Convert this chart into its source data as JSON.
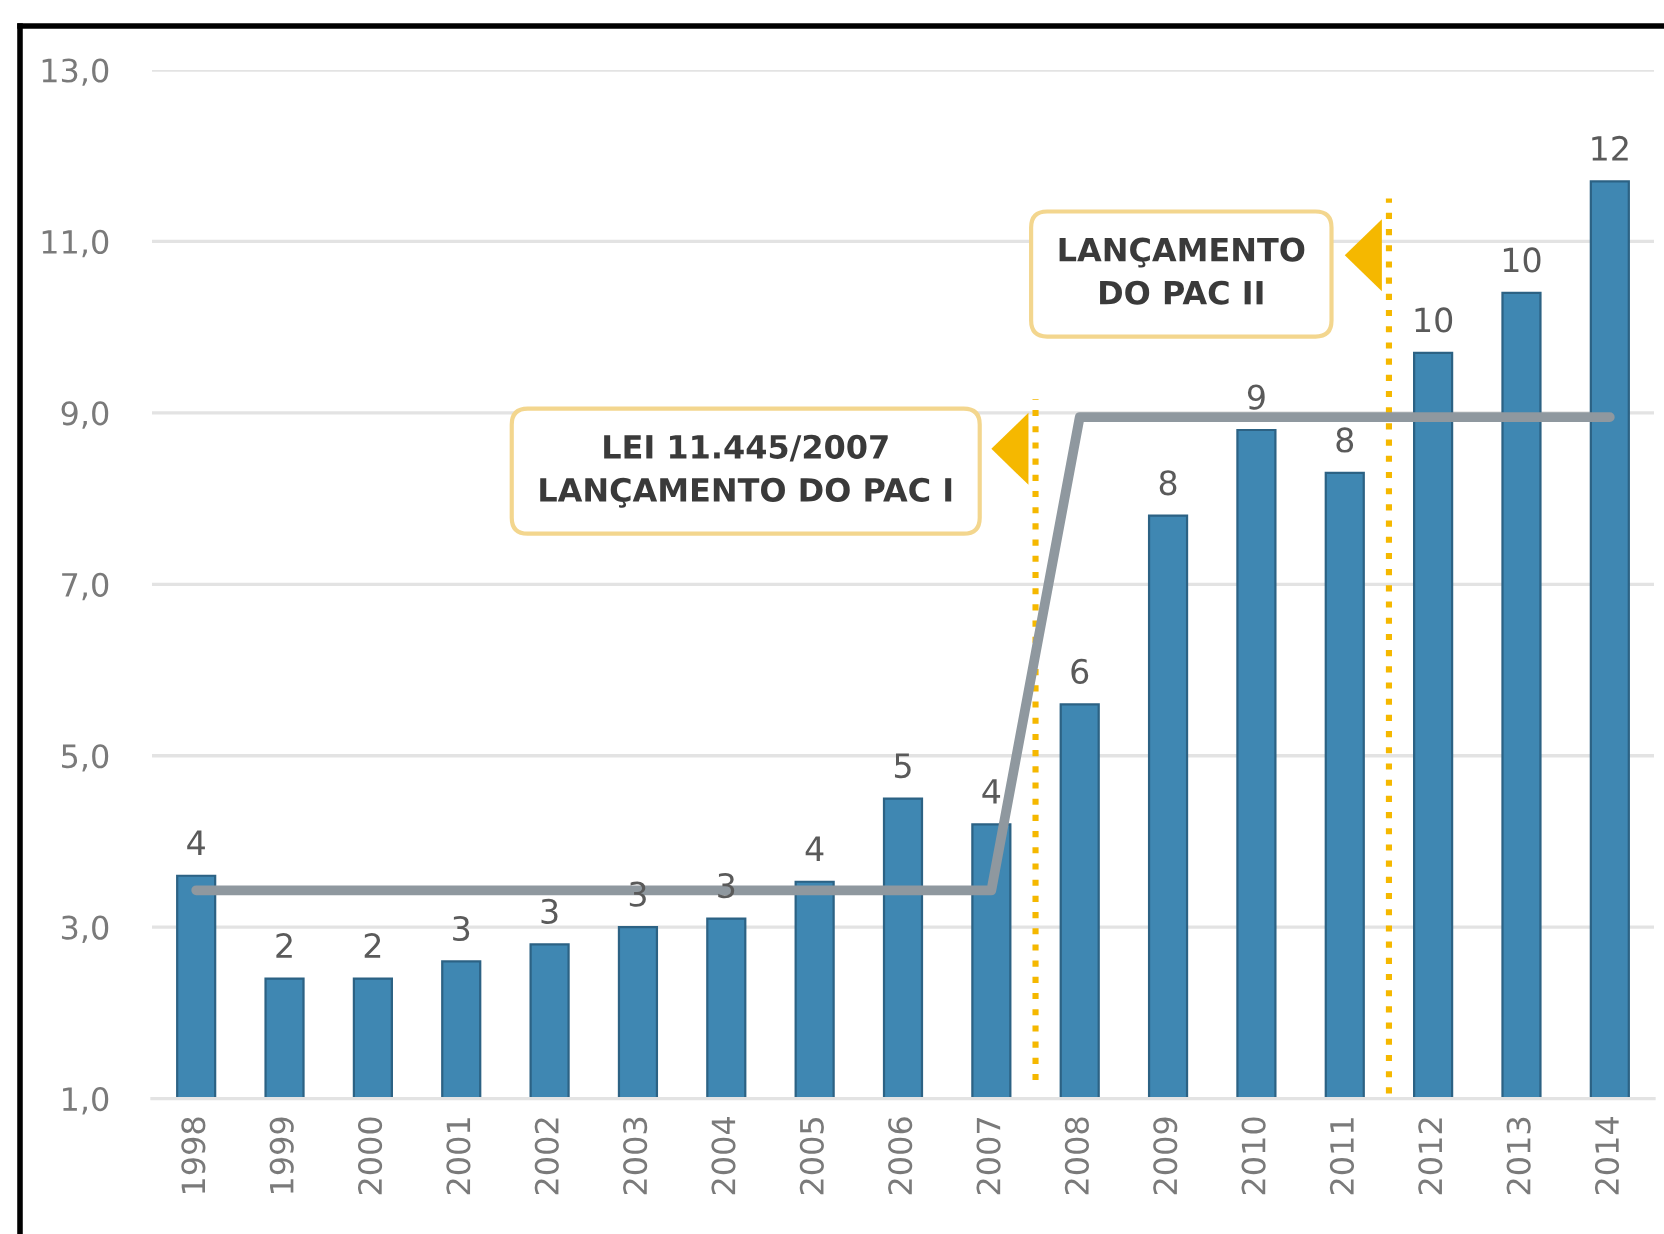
{
  "chart_data": {
    "type": "bar",
    "x": [
      1998,
      1999,
      2000,
      2001,
      2002,
      2003,
      2004,
      2005,
      2006,
      2007,
      2008,
      2009,
      2010,
      2011,
      2012,
      2013,
      2014
    ],
    "series": [
      {
        "color": "#3f87b2",
        "values": [
          3.6,
          2.4,
          2.4,
          2.6,
          2.8,
          3.0,
          3.1,
          3.53,
          4.5,
          4.2,
          5.6,
          7.8,
          8.8,
          8.3,
          9.7,
          10.4,
          11.7
        ],
        "value_labels": [
          "4",
          "2",
          "2",
          "3",
          "3",
          "3",
          "3",
          "4",
          "5",
          "4",
          "6",
          "8",
          "9",
          "8",
          "10",
          "10",
          "12"
        ]
      },
      {
        "type": "line",
        "color": "#8f989f",
        "values": [
          3.43,
          3.43,
          3.43,
          3.43,
          3.43,
          3.43,
          3.43,
          3.43,
          3.43,
          3.43,
          8.95,
          8.95,
          8.95,
          8.95,
          8.95,
          8.95,
          8.95
        ]
      }
    ],
    "xlim": [
      1997.5,
      2014.5
    ],
    "xticks": [
      1998,
      1999,
      2000,
      2001,
      2002,
      2003,
      2004,
      2005,
      2006,
      2007,
      2008,
      2009,
      2010,
      2011,
      2012,
      2013,
      2014
    ],
    "ylim": [
      1,
      13
    ],
    "yticks": [
      {
        "value": 1,
        "label": "1,0"
      },
      {
        "value": 3,
        "label": "3,0"
      },
      {
        "value": 5,
        "label": "5,0"
      },
      {
        "value": 7,
        "label": "7,0"
      },
      {
        "value": 9,
        "label": "9,0"
      },
      {
        "value": 11,
        "label": "11,0"
      },
      {
        "value": 13,
        "label": "13,0"
      }
    ],
    "grid": "y",
    "ref_lines": [
      {
        "axis": "x",
        "value": 2007.5,
        "label": "LEI 11.445/2007\nLANÇAMENTO DO PAC I",
        "color": "#f5b800",
        "line_style": "dotted"
      },
      {
        "axis": "x",
        "value": 2011.5,
        "label": "LANÇAMENTO\nDO PAC II",
        "color": "#f5b800",
        "line_style": "dotted"
      }
    ]
  }
}
